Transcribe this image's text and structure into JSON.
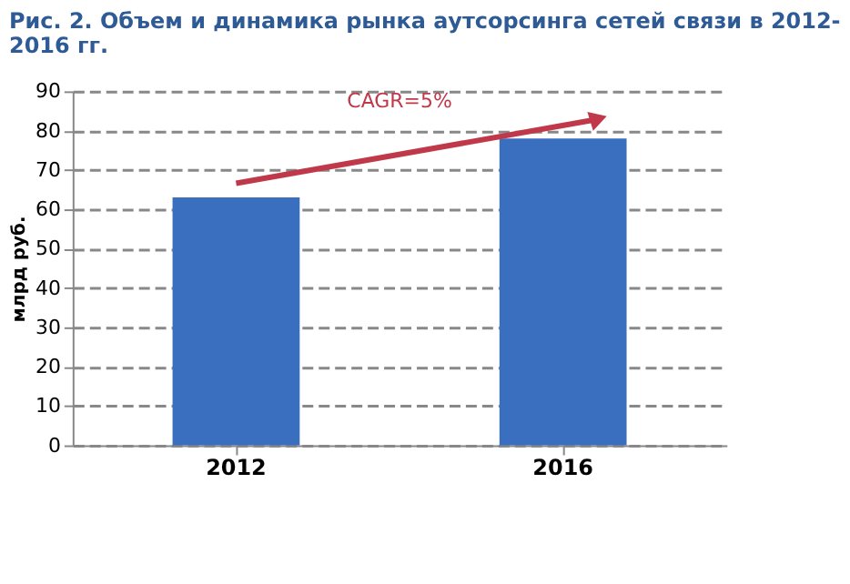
{
  "chart_data": {
    "type": "bar",
    "title": [
      "Рис. 2. Объем и динамика рынка аутсорсинга сетей связи в 2012-",
      "2016 гг."
    ],
    "ylabel": "млрд руб.",
    "categories": [
      "2012",
      "2016"
    ],
    "values": [
      63,
      78
    ],
    "color": "#3a6fc0",
    "ylim": [
      0,
      90
    ],
    "yticks": [
      0,
      10,
      20,
      30,
      40,
      50,
      60,
      70,
      80,
      90
    ],
    "grid": "y",
    "annotations": [
      "CAGR=5%"
    ]
  }
}
